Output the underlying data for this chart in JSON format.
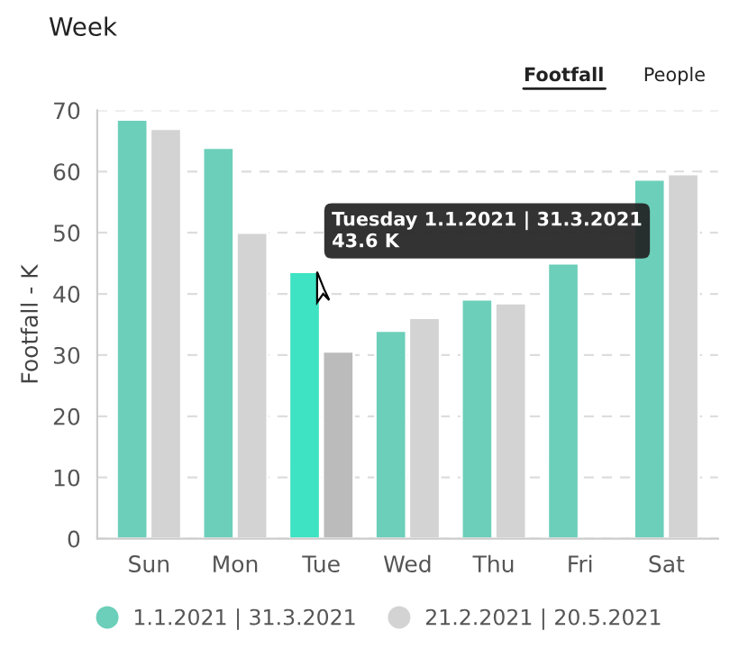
{
  "chart_data": {
    "type": "bar",
    "title": "Week",
    "ylabel": "Footfall - K",
    "categories": [
      "Sun",
      "Mon",
      "Tue",
      "Wed",
      "Thu",
      "Fri",
      "Sat"
    ],
    "series": [
      {
        "name": "1.1.2021 | 31.3.2021",
        "color": "#6ccfba",
        "colors": [
          "#6ccfba",
          "#6ccfba",
          "#3de3c3",
          "#6ccfba",
          "#6ccfba",
          "#6ccfba",
          "#6ccfba"
        ],
        "values": [
          68.5,
          63.9,
          43.6,
          34.0,
          39.1,
          45.0,
          58.7
        ]
      },
      {
        "name": "21.2.2021 | 20.5.2021",
        "color": "#d3d3d3",
        "colors": [
          "#d3d3d3",
          "#d3d3d3",
          "#bbbbbb",
          "#d3d3d3",
          "#d3d3d3",
          null,
          "#d3d3d3"
        ],
        "values": [
          67.0,
          50.0,
          30.6,
          36.1,
          38.5,
          null,
          59.6
        ]
      }
    ],
    "ylim": [
      0,
      70
    ],
    "yticks": [
      0,
      10,
      20,
      30,
      40,
      50,
      60,
      70
    ],
    "grid": "y",
    "legend": "bottom",
    "annotations": [
      {
        "text": "Tuesday 1.1.2021 | 31.3.2021\n43.6 K",
        "x": "Tue",
        "y": 43.6
      },
      "Footfall",
      "People"
    ]
  }
}
